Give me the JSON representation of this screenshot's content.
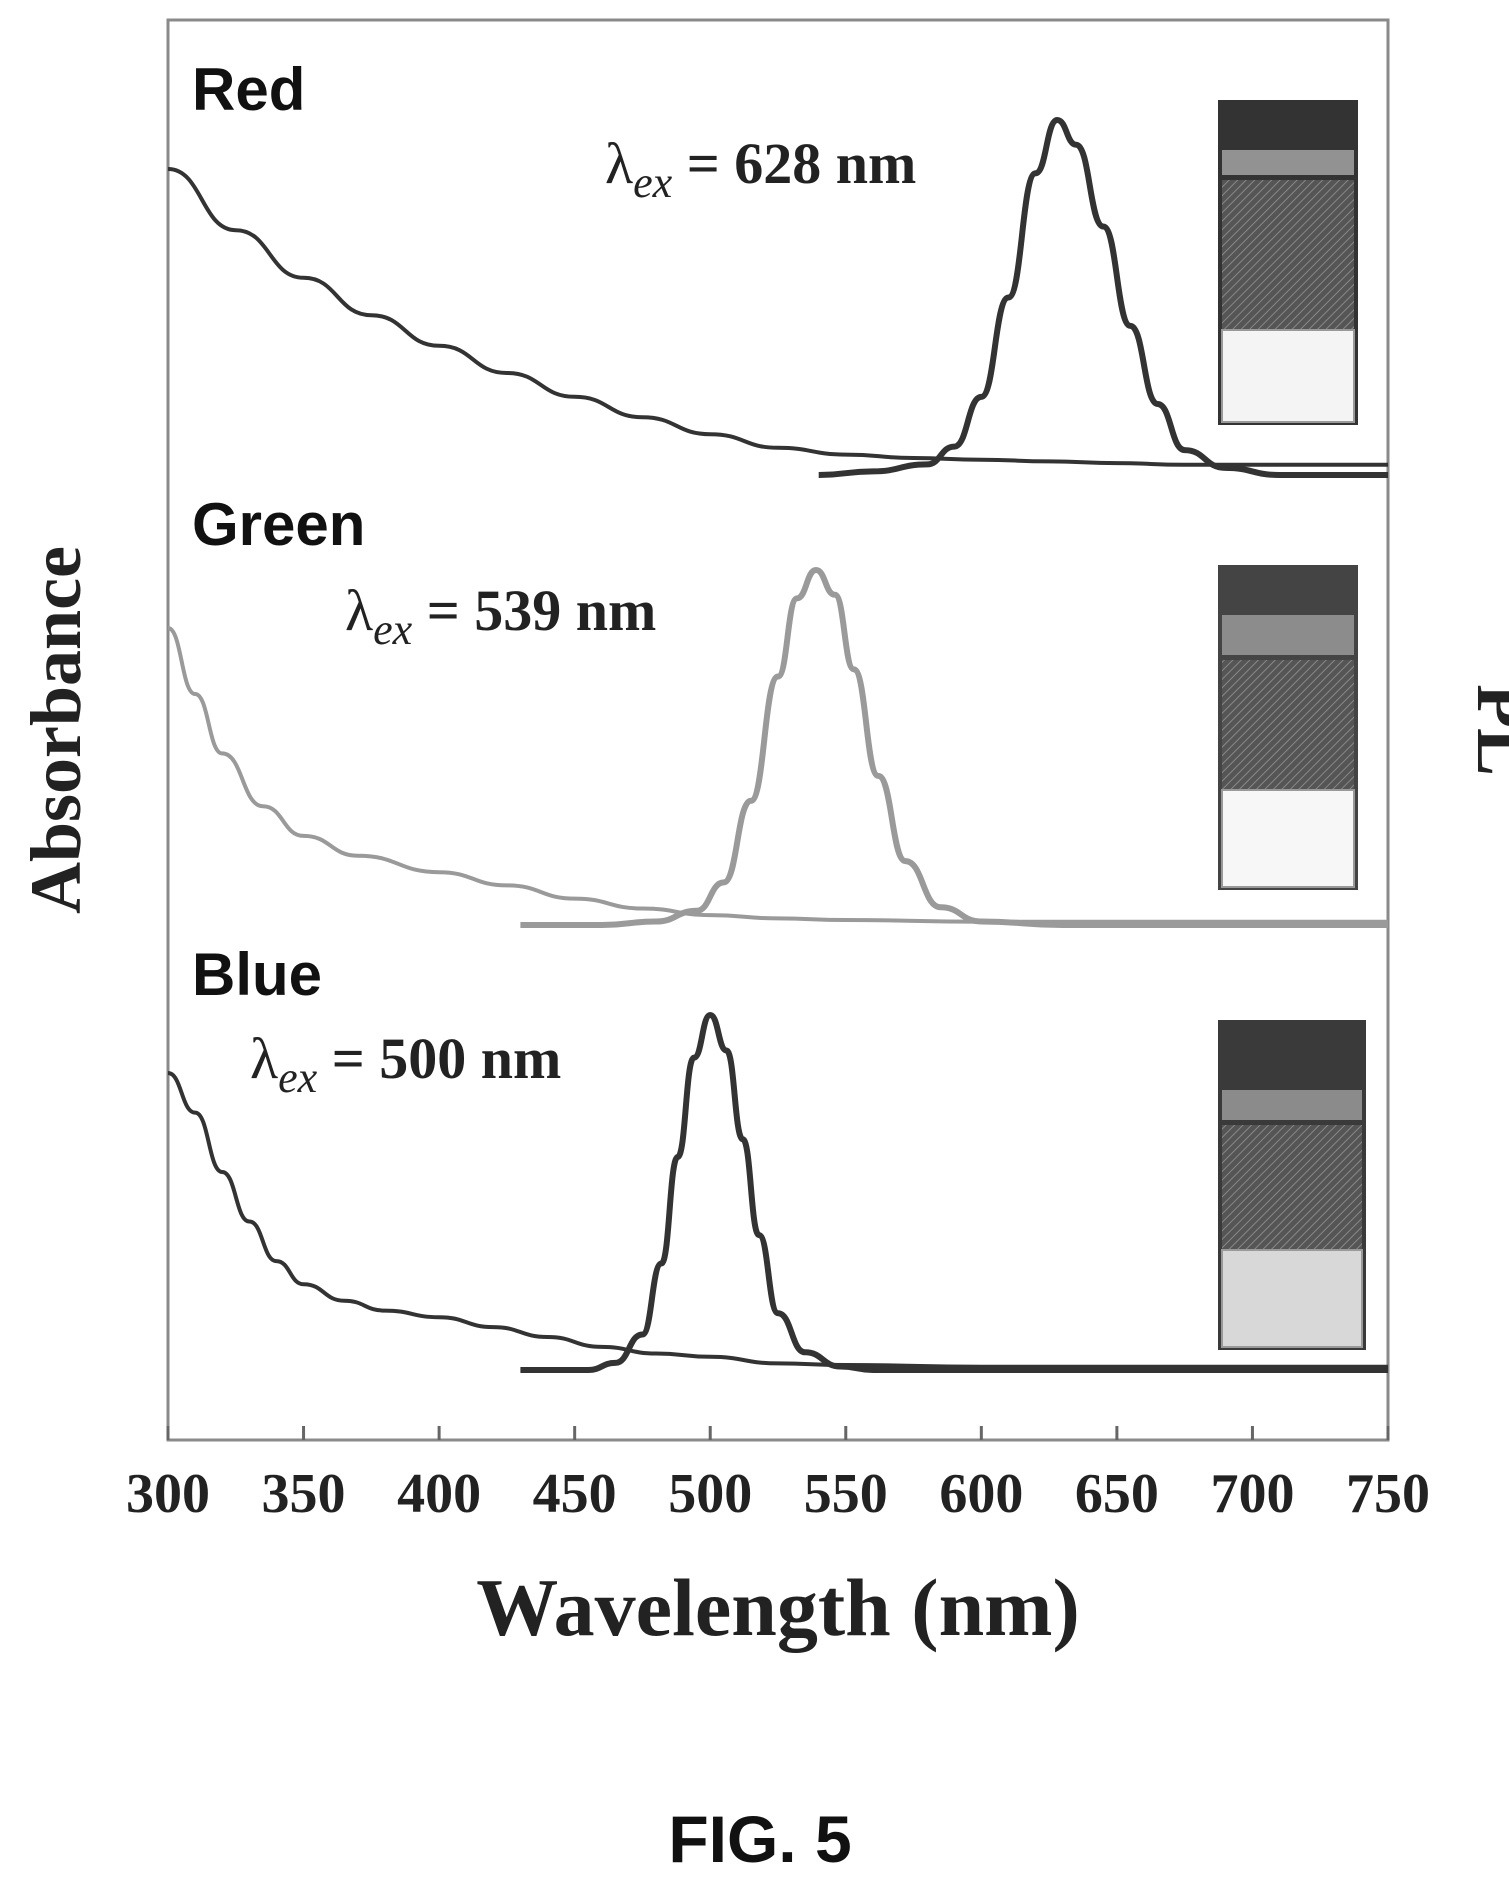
{
  "figure_label": "FIG. 5",
  "chart_data": {
    "type": "line",
    "xlabel": "Wavelength (nm)",
    "ylabel_left": "Absorbance",
    "ylabel_right": "PL",
    "xlim": [
      300,
      750
    ],
    "xticks": [
      300,
      350,
      400,
      450,
      500,
      550,
      600,
      650,
      700,
      750
    ],
    "grid": false,
    "panels": [
      {
        "name": "Red",
        "annotation": {
          "symbol": "λ",
          "subscript": "ex",
          "text": " = 628 nm"
        },
        "peak_nm": 628,
        "color": "#333333",
        "absorbance": {
          "x": [
            300,
            325,
            350,
            375,
            400,
            425,
            450,
            475,
            500,
            525,
            550,
            575,
            600,
            625,
            650,
            675,
            700,
            725,
            750
          ],
          "y": [
            0.9,
            0.72,
            0.58,
            0.47,
            0.38,
            0.3,
            0.23,
            0.17,
            0.12,
            0.08,
            0.06,
            0.05,
            0.045,
            0.04,
            0.035,
            0.03,
            0.03,
            0.03,
            0.03
          ]
        },
        "pl": {
          "x": [
            540,
            560,
            580,
            590,
            600,
            610,
            620,
            628,
            635,
            645,
            655,
            665,
            675,
            690,
            710,
            750
          ],
          "y": [
            0.0,
            0.01,
            0.03,
            0.08,
            0.22,
            0.5,
            0.85,
            1.0,
            0.93,
            0.7,
            0.42,
            0.2,
            0.07,
            0.02,
            0.0,
            0.0
          ]
        }
      },
      {
        "name": "Green",
        "annotation": {
          "symbol": "λ",
          "subscript": "ex",
          "text": " = 539 nm"
        },
        "peak_nm": 539,
        "color": "#9a9a9a",
        "absorbance": {
          "x": [
            300,
            310,
            320,
            335,
            350,
            370,
            400,
            425,
            450,
            475,
            500,
            525,
            550,
            600,
            650,
            700,
            750
          ],
          "y": [
            0.9,
            0.7,
            0.52,
            0.36,
            0.27,
            0.21,
            0.16,
            0.12,
            0.08,
            0.05,
            0.03,
            0.02,
            0.015,
            0.01,
            0.01,
            0.01,
            0.01
          ]
        },
        "pl": {
          "x": [
            430,
            460,
            480,
            495,
            505,
            515,
            525,
            532,
            539,
            546,
            553,
            562,
            572,
            585,
            600,
            630,
            750
          ],
          "y": [
            0.0,
            0.0,
            0.01,
            0.04,
            0.12,
            0.35,
            0.7,
            0.92,
            1.0,
            0.93,
            0.72,
            0.42,
            0.18,
            0.05,
            0.01,
            0.0,
            0.0
          ]
        }
      },
      {
        "name": "Blue",
        "annotation": {
          "symbol": "λ",
          "subscript": "ex",
          "text": " = 500 nm"
        },
        "peak_nm": 500,
        "color": "#333333",
        "absorbance": {
          "x": [
            300,
            310,
            320,
            330,
            340,
            350,
            365,
            380,
            400,
            420,
            440,
            460,
            480,
            500,
            525,
            550,
            600,
            650,
            700,
            750
          ],
          "y": [
            0.9,
            0.78,
            0.6,
            0.45,
            0.33,
            0.26,
            0.21,
            0.18,
            0.16,
            0.13,
            0.1,
            0.07,
            0.05,
            0.04,
            0.02,
            0.015,
            0.01,
            0.01,
            0.01,
            0.01
          ]
        },
        "pl": {
          "x": [
            430,
            455,
            465,
            475,
            482,
            488,
            494,
            500,
            506,
            512,
            518,
            525,
            535,
            548,
            560,
            600,
            750
          ],
          "y": [
            0.0,
            0.0,
            0.02,
            0.1,
            0.3,
            0.6,
            0.88,
            1.0,
            0.9,
            0.65,
            0.38,
            0.16,
            0.05,
            0.01,
            0.0,
            0.0,
            0.0
          ]
        }
      }
    ]
  }
}
